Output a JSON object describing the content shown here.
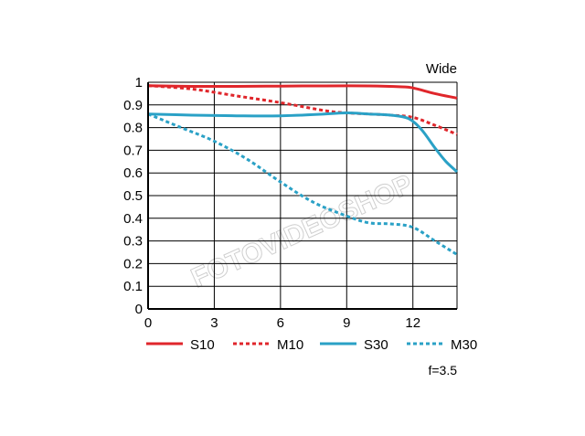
{
  "chart_data": {
    "type": "line",
    "title": "Wide",
    "footnote": "f=3.5",
    "xlim": [
      0,
      14
    ],
    "ylim": [
      0,
      1
    ],
    "x_ticks": [
      "0",
      "3",
      "6",
      "9",
      "12"
    ],
    "y_ticks": [
      "0",
      "0.1",
      "0.2",
      "0.3",
      "0.4",
      "0.5",
      "0.6",
      "0.7",
      "0.8",
      "0.9",
      "1"
    ],
    "grid": true,
    "legend_position": "bottom",
    "watermark": "FOTOVIDEOSHOP",
    "series": [
      {
        "name": "S10",
        "color": "#e0262b",
        "style": "solid",
        "points": [
          [
            0,
            0.985
          ],
          [
            2,
            0.982
          ],
          [
            4,
            0.982
          ],
          [
            6,
            0.983
          ],
          [
            8,
            0.984
          ],
          [
            10,
            0.984
          ],
          [
            11.5,
            0.98
          ],
          [
            12,
            0.975
          ],
          [
            13,
            0.95
          ],
          [
            14,
            0.93
          ]
        ]
      },
      {
        "name": "M10",
        "color": "#e0262b",
        "style": "dashed",
        "points": [
          [
            0,
            0.985
          ],
          [
            2,
            0.97
          ],
          [
            4,
            0.94
          ],
          [
            6,
            0.91
          ],
          [
            8,
            0.875
          ],
          [
            9,
            0.865
          ],
          [
            10,
            0.86
          ],
          [
            11,
            0.855
          ],
          [
            12,
            0.845
          ],
          [
            13,
            0.81
          ],
          [
            14,
            0.77
          ]
        ]
      },
      {
        "name": "S30",
        "color": "#2aa1c6",
        "style": "solid",
        "points": [
          [
            0,
            0.86
          ],
          [
            2,
            0.855
          ],
          [
            4,
            0.852
          ],
          [
            6,
            0.852
          ],
          [
            8,
            0.86
          ],
          [
            9,
            0.865
          ],
          [
            10,
            0.86
          ],
          [
            11,
            0.855
          ],
          [
            11.8,
            0.84
          ],
          [
            12.4,
            0.79
          ],
          [
            13,
            0.71
          ],
          [
            13.5,
            0.65
          ],
          [
            14,
            0.605
          ]
        ]
      },
      {
        "name": "M30",
        "color": "#2aa1c6",
        "style": "dashed",
        "points": [
          [
            0,
            0.86
          ],
          [
            1.5,
            0.8
          ],
          [
            3,
            0.74
          ],
          [
            4.5,
            0.66
          ],
          [
            6,
            0.56
          ],
          [
            7.5,
            0.47
          ],
          [
            9,
            0.41
          ],
          [
            10,
            0.38
          ],
          [
            11,
            0.375
          ],
          [
            12,
            0.36
          ],
          [
            13,
            0.3
          ],
          [
            14,
            0.24
          ]
        ]
      }
    ]
  }
}
